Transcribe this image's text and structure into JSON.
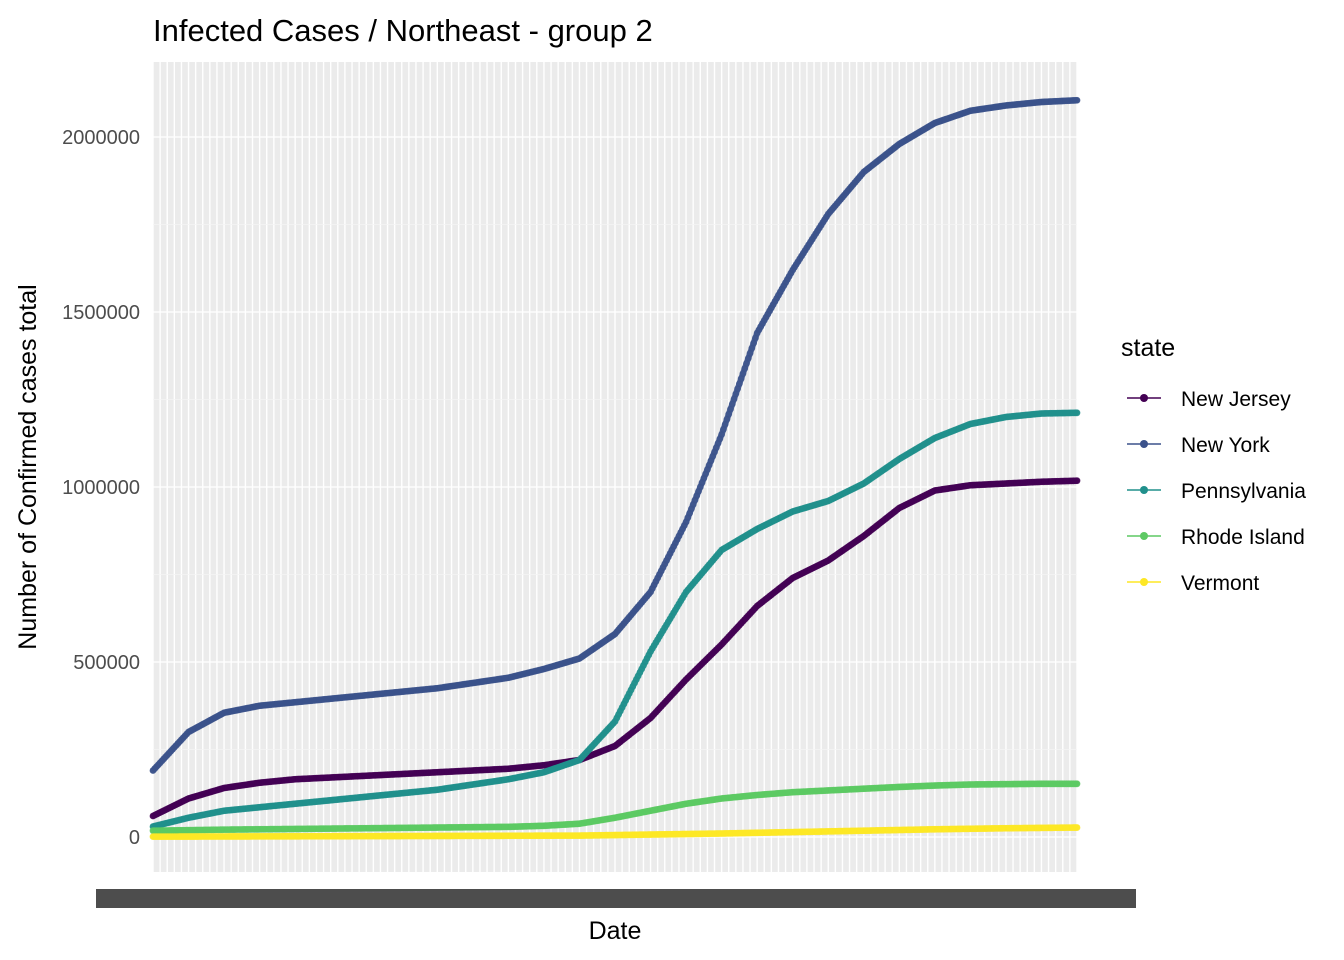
{
  "chart_data": {
    "type": "line",
    "title": "Infected Cases / Northeast - group 2",
    "xlabel": "Date",
    "ylabel": "Number of Confirmed cases total",
    "ylim": [
      -100000,
      2200000
    ],
    "yticks": [
      0,
      500000,
      1000000,
      1500000,
      2000000
    ],
    "ytick_labels": [
      "0",
      "500000",
      "1000000",
      "1500000",
      "2000000"
    ],
    "x_tick_labels_note": "overlapping illegible date labels",
    "x_count": 130,
    "grid": true,
    "legend": {
      "title": "state",
      "position": "right"
    },
    "series": [
      {
        "name": "New Jersey",
        "color": "#440154",
        "x": [
          0,
          5,
          10,
          15,
          20,
          30,
          40,
          50,
          55,
          60,
          65,
          70,
          75,
          80,
          85,
          90,
          95,
          100,
          105,
          110,
          115,
          120,
          125,
          130
        ],
        "values": [
          60000,
          110000,
          140000,
          155000,
          165000,
          175000,
          185000,
          195000,
          205000,
          220000,
          260000,
          340000,
          450000,
          550000,
          660000,
          740000,
          790000,
          860000,
          940000,
          990000,
          1005000,
          1010000,
          1015000,
          1018000
        ]
      },
      {
        "name": "New York",
        "color": "#3b528b",
        "x": [
          0,
          5,
          10,
          15,
          20,
          30,
          40,
          50,
          55,
          60,
          65,
          70,
          75,
          80,
          85,
          90,
          95,
          100,
          105,
          110,
          115,
          120,
          125,
          130
        ],
        "values": [
          190000,
          300000,
          355000,
          375000,
          385000,
          405000,
          425000,
          455000,
          480000,
          510000,
          580000,
          700000,
          900000,
          1150000,
          1440000,
          1620000,
          1780000,
          1900000,
          1980000,
          2040000,
          2075000,
          2090000,
          2100000,
          2105000
        ]
      },
      {
        "name": "Pennsylvania",
        "color": "#21908c",
        "x": [
          0,
          5,
          10,
          15,
          20,
          30,
          40,
          50,
          55,
          60,
          65,
          70,
          75,
          80,
          85,
          90,
          95,
          100,
          105,
          110,
          115,
          120,
          125,
          130
        ],
        "values": [
          30000,
          55000,
          75000,
          85000,
          95000,
          115000,
          135000,
          165000,
          185000,
          220000,
          330000,
          530000,
          700000,
          820000,
          880000,
          930000,
          960000,
          1010000,
          1080000,
          1140000,
          1180000,
          1200000,
          1210000,
          1212000
        ]
      },
      {
        "name": "Rhode Island",
        "color": "#5dc963",
        "x": [
          0,
          10,
          20,
          30,
          40,
          50,
          55,
          60,
          65,
          70,
          75,
          80,
          85,
          90,
          95,
          100,
          105,
          110,
          115,
          120,
          125,
          130
        ],
        "values": [
          18000,
          21000,
          23000,
          25000,
          27000,
          29000,
          32000,
          38000,
          55000,
          75000,
          95000,
          110000,
          120000,
          128000,
          133000,
          138000,
          143000,
          147000,
          150000,
          151000,
          152000,
          152000
        ]
      },
      {
        "name": "Vermont",
        "color": "#fde725",
        "x": [
          0,
          20,
          40,
          60,
          70,
          80,
          90,
          100,
          110,
          120,
          130
        ],
        "values": [
          1000,
          2000,
          3000,
          4000,
          7000,
          10000,
          14000,
          18000,
          22000,
          25000,
          27000
        ]
      }
    ]
  }
}
